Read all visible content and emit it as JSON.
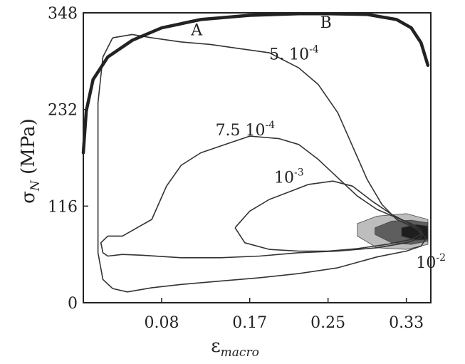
{
  "chart_data": {
    "type": "line",
    "xlabel": {
      "base": "ε",
      "sub": "macro"
    },
    "ylabel": {
      "main": "σ",
      "sub": "N",
      "unit": " (MPa)"
    },
    "xlim": [
      0.0,
      0.355
    ],
    "ylim": [
      0,
      348
    ],
    "x_ticks": [
      0.08,
      0.17,
      0.25,
      0.33
    ],
    "x_tick_labels": [
      "0.08",
      "0.17",
      "0.25",
      "0.33"
    ],
    "y_ticks": [
      0,
      116,
      232,
      348
    ],
    "y_tick_labels": [
      "0",
      "116",
      "232",
      "348"
    ],
    "grid": false,
    "series": [
      {
        "kind": "envelope",
        "points": [
          [
            0.0,
            180
          ],
          [
            0.003,
            230
          ],
          [
            0.01,
            268
          ],
          [
            0.025,
            295
          ],
          [
            0.05,
            315
          ],
          [
            0.08,
            330
          ],
          [
            0.12,
            340
          ],
          [
            0.17,
            345
          ],
          [
            0.22,
            347
          ],
          [
            0.25,
            347
          ],
          [
            0.29,
            346
          ],
          [
            0.32,
            340
          ],
          [
            0.335,
            330
          ],
          [
            0.345,
            312
          ],
          [
            0.352,
            285
          ]
        ]
      },
      {
        "kind": "contour",
        "points": [
          [
            0.03,
            318
          ],
          [
            0.05,
            322
          ],
          [
            0.07,
            318
          ],
          [
            0.1,
            313
          ],
          [
            0.13,
            310
          ],
          [
            0.16,
            305
          ],
          [
            0.19,
            300
          ],
          [
            0.22,
            282
          ],
          [
            0.24,
            262
          ],
          [
            0.26,
            228
          ],
          [
            0.275,
            188
          ],
          [
            0.29,
            148
          ],
          [
            0.305,
            118
          ],
          [
            0.32,
            100
          ],
          [
            0.335,
            92
          ],
          [
            0.345,
            85
          ],
          [
            0.35,
            77
          ],
          [
            0.345,
            68
          ],
          [
            0.33,
            62
          ],
          [
            0.3,
            55
          ],
          [
            0.26,
            42
          ],
          [
            0.22,
            35
          ],
          [
            0.18,
            30
          ],
          [
            0.14,
            26
          ],
          [
            0.1,
            22
          ],
          [
            0.07,
            18
          ],
          [
            0.045,
            13
          ],
          [
            0.03,
            17
          ],
          [
            0.02,
            28
          ],
          [
            0.015,
            60
          ],
          [
            0.015,
            140
          ],
          [
            0.015,
            240
          ],
          [
            0.02,
            295
          ],
          [
            0.03,
            318
          ]
        ]
      },
      {
        "kind": "contour",
        "points": [
          [
            0.02,
            60
          ],
          [
            0.018,
            72
          ],
          [
            0.025,
            80
          ],
          [
            0.04,
            80
          ],
          [
            0.055,
            90
          ],
          [
            0.07,
            100
          ],
          [
            0.085,
            140
          ],
          [
            0.1,
            165
          ],
          [
            0.12,
            180
          ],
          [
            0.145,
            190
          ],
          [
            0.17,
            200
          ],
          [
            0.2,
            197
          ],
          [
            0.22,
            190
          ],
          [
            0.24,
            172
          ],
          [
            0.26,
            150
          ],
          [
            0.28,
            128
          ],
          [
            0.3,
            112
          ],
          [
            0.32,
            102
          ],
          [
            0.335,
            95
          ],
          [
            0.345,
            88
          ],
          [
            0.345,
            78
          ],
          [
            0.33,
            72
          ],
          [
            0.3,
            66
          ],
          [
            0.26,
            62
          ],
          [
            0.22,
            60
          ],
          [
            0.18,
            56
          ],
          [
            0.14,
            54
          ],
          [
            0.1,
            54
          ],
          [
            0.06,
            57
          ],
          [
            0.04,
            58
          ],
          [
            0.025,
            56
          ],
          [
            0.02,
            60
          ]
        ]
      },
      {
        "kind": "contour",
        "points": [
          [
            0.155,
            90
          ],
          [
            0.17,
            110
          ],
          [
            0.19,
            124
          ],
          [
            0.21,
            133
          ],
          [
            0.23,
            142
          ],
          [
            0.255,
            146
          ],
          [
            0.275,
            140
          ],
          [
            0.295,
            122
          ],
          [
            0.315,
            106
          ],
          [
            0.33,
            97
          ],
          [
            0.34,
            90
          ],
          [
            0.345,
            82
          ],
          [
            0.335,
            76
          ],
          [
            0.31,
            70
          ],
          [
            0.28,
            65
          ],
          [
            0.25,
            62
          ],
          [
            0.22,
            62
          ],
          [
            0.19,
            64
          ],
          [
            0.165,
            72
          ],
          [
            0.155,
            90
          ]
        ]
      },
      {
        "kind": "filled",
        "fill": "#bdbdbd",
        "points": [
          [
            0.28,
            95
          ],
          [
            0.3,
            104
          ],
          [
            0.33,
            107
          ],
          [
            0.352,
            100
          ],
          [
            0.352,
            70
          ],
          [
            0.33,
            64
          ],
          [
            0.3,
            66
          ],
          [
            0.28,
            80
          ],
          [
            0.28,
            95
          ]
        ]
      },
      {
        "kind": "filled",
        "fill": "#5e5e5e",
        "points": [
          [
            0.298,
            90
          ],
          [
            0.315,
            98
          ],
          [
            0.335,
            99
          ],
          [
            0.352,
            96
          ],
          [
            0.352,
            74
          ],
          [
            0.335,
            70
          ],
          [
            0.315,
            72
          ],
          [
            0.298,
            82
          ],
          [
            0.298,
            90
          ]
        ]
      },
      {
        "kind": "filled",
        "fill": "#1e1e1e",
        "points": [
          [
            0.325,
            90
          ],
          [
            0.34,
            94
          ],
          [
            0.352,
            92
          ],
          [
            0.352,
            76
          ],
          [
            0.34,
            75
          ],
          [
            0.325,
            80
          ],
          [
            0.325,
            90
          ]
        ]
      }
    ],
    "annotations": [
      {
        "text": "A",
        "sup": "",
        "x": 0.11,
        "y": 321
      },
      {
        "text": "B",
        "sup": "",
        "x": 0.242,
        "y": 330
      },
      {
        "text": "5. 10",
        "sup": "-4",
        "x": 0.19,
        "y": 292
      },
      {
        "text": "7.5 10",
        "sup": "-4",
        "x": 0.135,
        "y": 201
      },
      {
        "text": "10",
        "sup": "-3",
        "x": 0.195,
        "y": 144
      },
      {
        "text": "10",
        "sup": "-2",
        "x": 0.34,
        "y": 42
      }
    ]
  }
}
